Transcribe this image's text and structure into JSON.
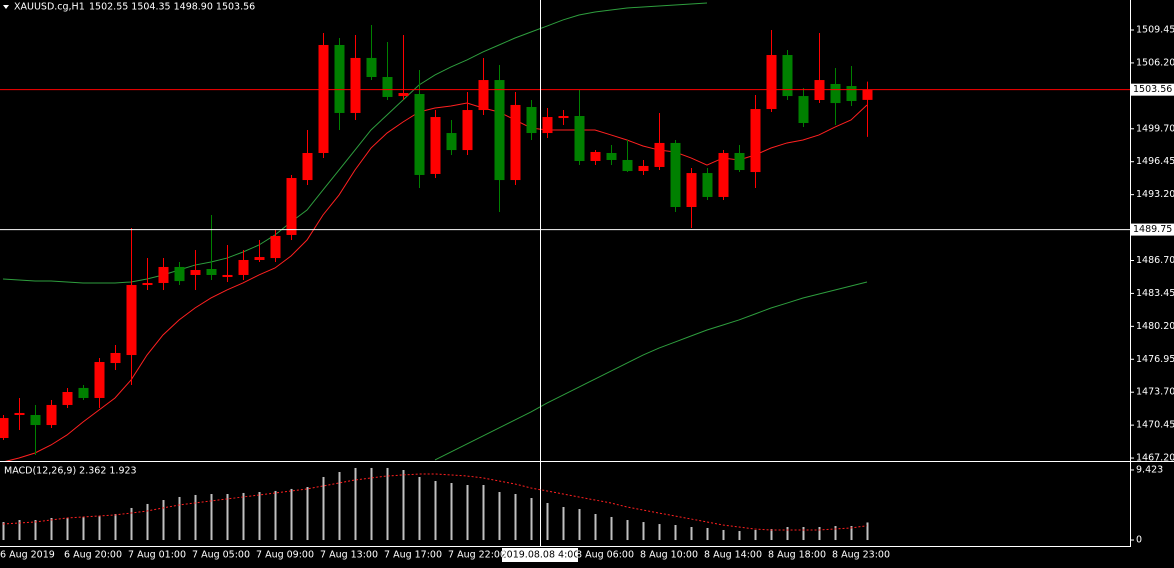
{
  "header": {
    "symbol": "XAUUSD.cg,H1",
    "ohlc": "1502.55 1504.35 1498.90 1503.56"
  },
  "chart_data": [
    {
      "type": "candlestick",
      "categories": [
        "6 Aug 2019",
        null,
        null,
        null,
        "6 Aug 20:00",
        null,
        null,
        null,
        "7 Aug 01:00",
        null,
        null,
        null,
        "7 Aug 05:00",
        null,
        null,
        null,
        "7 Aug 09:00",
        null,
        null,
        null,
        "7 Aug 13:00",
        null,
        null,
        null,
        "7 Aug 17:00",
        null,
        null,
        null,
        "7 Aug 22:00",
        null,
        null,
        null,
        null,
        null,
        null,
        null,
        "8 Aug 06:00",
        null,
        null,
        null,
        "8 Aug 10:00",
        null,
        null,
        null,
        "8 Aug 14:00",
        null,
        null,
        null,
        "8 Aug 18:00",
        null,
        null,
        null,
        "8 Aug 23:00",
        null,
        null
      ],
      "open": [
        1469.18,
        1471.45,
        1471.45,
        1470.46,
        1472.44,
        1474.12,
        1473.13,
        1476.58,
        1477.37,
        1484.28,
        1484.48,
        1486.06,
        1485.27,
        1485.86,
        1485.07,
        1485.27,
        1486.75,
        1486.94,
        1489.22,
        1494.64,
        1497.31,
        1507.97,
        1501.26,
        1506.69,
        1504.81,
        1502.93,
        1503.13,
        1495.24,
        1499.28,
        1497.6,
        1501.55,
        1504.51,
        1494.64,
        1501.85,
        1499.28,
        1500.76,
        1500.96,
        1496.52,
        1497.31,
        1496.62,
        1495.53,
        1495.93,
        1498.3,
        1491.98,
        1495.33,
        1492.97,
        1497.31,
        1495.43,
        1501.65,
        1506.98,
        1502.93,
        1502.54,
        1504.12,
        1503.92,
        1502.55
      ],
      "high": [
        1471.45,
        1473.13,
        1472.44,
        1472.93,
        1474.12,
        1474.41,
        1477.08,
        1478.36,
        1489.91,
        1486.94,
        1486.94,
        1486.55,
        1487.74,
        1491.19,
        1488.23,
        1487.74,
        1488.72,
        1489.71,
        1495.14,
        1499.58,
        1509.15,
        1508.66,
        1508.96,
        1509.94,
        1508.26,
        1508.96,
        1505.5,
        1501.55,
        1500.57,
        1503.33,
        1506.69,
        1505.99,
        1503.33,
        1502.54,
        1501.75,
        1501.55,
        1503.53,
        1497.6,
        1498.1,
        1498.59,
        1496.62,
        1501.26,
        1498.59,
        1495.83,
        1495.83,
        1497.6,
        1498.1,
        1503.03,
        1509.45,
        1507.48,
        1503.72,
        1509.15,
        1505.7,
        1505.9,
        1504.35
      ],
      "low": [
        1468.98,
        1469.97,
        1467.5,
        1470.17,
        1472.14,
        1472.93,
        1472.14,
        1475.89,
        1474.41,
        1483.79,
        1483.79,
        1484.28,
        1483.79,
        1484.77,
        1484.58,
        1484.77,
        1486.55,
        1486.55,
        1488.72,
        1494.15,
        1496.82,
        1499.58,
        1500.57,
        1504.51,
        1502.54,
        1502.54,
        1493.85,
        1494.84,
        1497.11,
        1497.11,
        1501.06,
        1491.49,
        1494.15,
        1498.59,
        1498.79,
        1500.07,
        1496.12,
        1496.12,
        1496.12,
        1495.43,
        1495.14,
        1495.63,
        1491.49,
        1489.91,
        1492.67,
        1492.67,
        1495.43,
        1493.85,
        1501.36,
        1502.54,
        1499.87,
        1502.24,
        1500.07,
        1501.95,
        1498.9
      ],
      "close": [
        1471.15,
        1471.65,
        1470.46,
        1472.44,
        1473.72,
        1473.13,
        1476.68,
        1477.57,
        1484.28,
        1484.48,
        1486.06,
        1484.67,
        1485.76,
        1485.27,
        1485.27,
        1486.75,
        1487.04,
        1489.12,
        1494.84,
        1497.31,
        1507.97,
        1501.26,
        1506.69,
        1504.81,
        1502.84,
        1503.23,
        1495.14,
        1500.86,
        1497.6,
        1501.55,
        1504.51,
        1494.64,
        1502.05,
        1499.28,
        1500.86,
        1500.96,
        1496.52,
        1497.41,
        1496.62,
        1495.53,
        1496.03,
        1498.3,
        1491.98,
        1495.33,
        1492.97,
        1497.31,
        1495.63,
        1501.65,
        1506.98,
        1502.93,
        1500.27,
        1504.51,
        1502.24,
        1502.44,
        1503.56
      ],
      "up_color": "#ff0000",
      "down_color": "#008000",
      "lines": [
        {
          "color": "#ff2020",
          "values": [
            1466.81,
            1467.21,
            1467.7,
            1468.49,
            1469.48,
            1470.76,
            1471.94,
            1473.13,
            1474.9,
            1477.37,
            1479.35,
            1480.83,
            1482.01,
            1483.0,
            1483.79,
            1484.48,
            1485.27,
            1485.96,
            1487.14,
            1488.72,
            1491.19,
            1493.16,
            1495.63,
            1497.8,
            1499.28,
            1500.37,
            1501.36,
            1501.75,
            1501.95,
            1502.24,
            1501.75,
            1501.36,
            1500.57,
            1499.78,
            1499.58,
            1499.58,
            1499.58,
            1499.58,
            1499.09,
            1498.59,
            1498.0,
            1497.6,
            1497.41,
            1496.82,
            1496.12,
            1496.82,
            1496.62,
            1497.11,
            1497.8,
            1498.3,
            1498.59,
            1499.09,
            1499.87,
            1500.57,
            1502.05
          ]
        },
        {
          "color": "#2e9e3e",
          "values": [
            1484.87,
            1484.77,
            1484.68,
            1484.68,
            1484.58,
            1484.48,
            1484.48,
            1484.48,
            1484.58,
            1484.87,
            1485.27,
            1485.76,
            1486.25,
            1486.55,
            1486.94,
            1487.54,
            1488.23,
            1489.22,
            1490.5,
            1491.68,
            1493.66,
            1495.63,
            1497.6,
            1499.58,
            1501.06,
            1502.54,
            1504.02,
            1505.01,
            1505.8,
            1506.49,
            1507.28,
            1507.97,
            1508.66,
            1509.25,
            1509.84,
            1510.44,
            1510.93,
            1511.23,
            1511.42,
            1511.62,
            1511.72,
            1511.82,
            1511.92,
            1512.02,
            1512.11,
            null,
            null,
            null,
            null,
            null,
            null,
            null,
            null,
            null,
            null
          ]
        },
        {
          "color": "#2e9e3e",
          "values": [
            null,
            null,
            null,
            null,
            null,
            null,
            null,
            null,
            null,
            null,
            null,
            null,
            null,
            null,
            null,
            null,
            null,
            null,
            null,
            null,
            null,
            null,
            null,
            null,
            null,
            null,
            null,
            1467.01,
            1467.8,
            1468.59,
            1469.38,
            1470.17,
            1470.96,
            1471.75,
            1472.63,
            1473.42,
            1474.21,
            1475.0,
            1475.79,
            1476.58,
            1477.37,
            1478.06,
            1478.65,
            1479.25,
            1479.84,
            1480.33,
            1480.83,
            1481.42,
            1482.01,
            1482.5,
            1483.0,
            1483.39,
            1483.79,
            1484.18,
            1484.58
          ]
        }
      ],
      "ylim": [
        1466.91,
        1512.41
      ],
      "yticks": [
        1509.45,
        {
          "value": 1506.2,
          "label": "1506.20"
        },
        {
          "value": 1499.7,
          "label": "1499.70"
        },
        1496.45,
        {
          "value": 1493.2,
          "label": "1493.20"
        },
        {
          "value": 1486.7,
          "label": "1486.70"
        },
        1483.45,
        {
          "value": 1480.2,
          "label": "1480.20"
        },
        1476.95,
        {
          "value": 1473.7,
          "label": "1473.70"
        },
        1470.45,
        {
          "value": 1467.2,
          "label": "1467.20"
        }
      ],
      "current_price": 1503.56,
      "current_price_color": "#ff0000",
      "crosshair": {
        "price": 1489.75,
        "time": "2019.08.08 4:00"
      }
    },
    {
      "type": "macd",
      "title": "MACD(12,26,9) 2.362 1.923",
      "histogram": [
        2.42,
        2.69,
        2.69,
        2.96,
        2.96,
        3.1,
        3.23,
        3.5,
        4.31,
        4.85,
        5.38,
        5.79,
        6.06,
        6.19,
        6.19,
        6.33,
        6.46,
        6.6,
        6.87,
        7.13,
        8.48,
        9.15,
        9.69,
        9.69,
        9.69,
        9.42,
        8.48,
        7.94,
        7.67,
        7.4,
        7.4,
        6.46,
        6.19,
        5.65,
        4.98,
        4.44,
        4.17,
        3.5,
        3.1,
        2.69,
        2.42,
        2.15,
        2.02,
        1.75,
        1.62,
        1.35,
        1.21,
        1.35,
        1.48,
        1.75,
        1.75,
        1.75,
        1.88,
        1.88,
        2.362
      ],
      "signal": [
        2.15,
        2.29,
        2.42,
        2.69,
        2.96,
        3.1,
        3.23,
        3.37,
        3.63,
        3.9,
        4.31,
        4.71,
        4.98,
        5.25,
        5.52,
        5.79,
        6.06,
        6.33,
        6.6,
        6.87,
        7.27,
        7.67,
        8.08,
        8.35,
        8.61,
        8.75,
        8.88,
        8.88,
        8.75,
        8.61,
        8.35,
        7.94,
        7.54,
        7.0,
        6.6,
        6.19,
        5.79,
        5.38,
        4.98,
        4.44,
        4.04,
        3.63,
        3.23,
        2.83,
        2.42,
        2.02,
        1.75,
        1.48,
        1.35,
        1.35,
        1.35,
        1.35,
        1.48,
        1.62,
        1.923
      ],
      "histogram_color": "#c0c0c0",
      "signal_color": "#ff2020",
      "ylim": [
        -0.67,
        10.36
      ],
      "yticks": [
        9.423,
        0
      ]
    }
  ]
}
